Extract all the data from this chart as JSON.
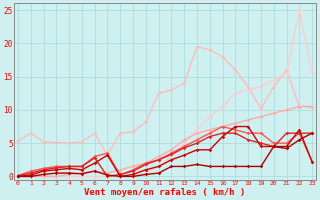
{
  "xlabel": "Vent moyen/en rafales ( km/h )",
  "bg_color": "#cff0f0",
  "grid_color": "#aadddd",
  "axis_color": "#888888",
  "x_ticks": [
    0,
    1,
    2,
    3,
    4,
    5,
    6,
    7,
    8,
    9,
    10,
    11,
    12,
    13,
    14,
    15,
    16,
    17,
    18,
    19,
    20,
    21,
    22,
    23
  ],
  "ylim": [
    -0.5,
    26
  ],
  "xlim": [
    -0.3,
    23.3
  ],
  "series": [
    {
      "x": [
        0,
        1,
        2,
        3,
        4,
        5,
        6,
        7,
        8,
        9,
        10,
        11,
        12,
        13,
        14,
        15,
        16,
        17,
        18,
        19,
        20,
        21,
        22,
        23
      ],
      "y": [
        5.3,
        6.5,
        5.2,
        5.1,
        5.0,
        5.2,
        6.5,
        3.2,
        6.5,
        6.7,
        8.2,
        12.5,
        13.0,
        14.0,
        19.5,
        19.0,
        18.0,
        16.0,
        13.5,
        10.2,
        13.5,
        16.0,
        10.5,
        10.5
      ],
      "color": "#ffbbbb",
      "lw": 1.0,
      "marker": "D",
      "ms": 1.8
    },
    {
      "x": [
        0,
        1,
        2,
        3,
        4,
        5,
        6,
        7,
        8,
        9,
        10,
        11,
        12,
        13,
        14,
        15,
        16,
        17,
        18,
        19,
        20,
        21,
        22,
        23
      ],
      "y": [
        0.0,
        0.0,
        0.0,
        0.0,
        0.0,
        0.0,
        0.0,
        0.0,
        0.0,
        0.0,
        0.5,
        1.5,
        3.0,
        5.0,
        7.0,
        9.0,
        10.5,
        12.5,
        13.0,
        13.5,
        14.5,
        15.5,
        25.0,
        15.5
      ],
      "color": "#ffcccc",
      "lw": 1.0,
      "marker": "D",
      "ms": 1.8
    },
    {
      "x": [
        0,
        1,
        2,
        3,
        4,
        5,
        6,
        7,
        8,
        9,
        10,
        11,
        12,
        13,
        14,
        15,
        16,
        17,
        18,
        19,
        20,
        21,
        22,
        23
      ],
      "y": [
        0.0,
        0.0,
        0.0,
        0.0,
        0.3,
        0.5,
        0.8,
        0.5,
        1.0,
        1.5,
        2.0,
        3.0,
        4.0,
        5.5,
        6.5,
        7.0,
        7.5,
        8.0,
        8.5,
        9.0,
        9.5,
        10.0,
        10.5,
        10.5
      ],
      "color": "#ffaaaa",
      "lw": 1.0,
      "marker": "D",
      "ms": 1.8
    },
    {
      "x": [
        0,
        1,
        2,
        3,
        4,
        5,
        6,
        7,
        8,
        9,
        10,
        11,
        12,
        13,
        14,
        15,
        16,
        17,
        18,
        19,
        20,
        21,
        22,
        23
      ],
      "y": [
        0.1,
        0.8,
        1.2,
        1.5,
        1.5,
        1.5,
        3.0,
        3.5,
        0.2,
        1.0,
        2.0,
        2.5,
        3.5,
        4.5,
        5.5,
        6.5,
        7.5,
        7.0,
        6.5,
        6.5,
        5.0,
        5.0,
        6.5,
        2.2
      ],
      "color": "#ff5555",
      "lw": 1.0,
      "marker": "D",
      "ms": 1.8
    },
    {
      "x": [
        0,
        1,
        2,
        3,
        4,
        5,
        6,
        7,
        8,
        9,
        10,
        11,
        12,
        13,
        14,
        15,
        16,
        17,
        18,
        19,
        20,
        21,
        22,
        23
      ],
      "y": [
        0.1,
        0.5,
        1.0,
        1.3,
        1.5,
        1.5,
        2.8,
        0.0,
        0.3,
        0.8,
        1.8,
        2.5,
        3.3,
        4.3,
        5.0,
        6.0,
        6.5,
        6.5,
        5.5,
        5.0,
        4.5,
        6.5,
        6.5,
        6.5
      ],
      "color": "#dd2222",
      "lw": 1.0,
      "marker": "D",
      "ms": 1.8
    },
    {
      "x": [
        0,
        1,
        2,
        3,
        4,
        5,
        6,
        7,
        8,
        9,
        10,
        11,
        12,
        13,
        14,
        15,
        16,
        17,
        18,
        19,
        20,
        21,
        22,
        23
      ],
      "y": [
        0.0,
        0.2,
        0.8,
        1.0,
        1.2,
        1.0,
        2.0,
        3.2,
        0.0,
        0.3,
        1.0,
        1.5,
        2.5,
        3.2,
        4.0,
        4.0,
        6.0,
        7.5,
        7.5,
        4.5,
        4.5,
        4.5,
        7.0,
        2.2
      ],
      "color": "#cc0000",
      "lw": 1.0,
      "marker": "D",
      "ms": 1.8
    },
    {
      "x": [
        0,
        1,
        2,
        3,
        4,
        5,
        6,
        7,
        8,
        9,
        10,
        11,
        12,
        13,
        14,
        15,
        16,
        17,
        18,
        19,
        20,
        21,
        22,
        23
      ],
      "y": [
        0.0,
        0.0,
        0.3,
        0.5,
        0.5,
        0.4,
        0.8,
        0.2,
        0.0,
        0.0,
        0.3,
        0.5,
        1.5,
        1.5,
        1.8,
        1.5,
        1.5,
        1.5,
        1.5,
        1.5,
        4.5,
        4.2,
        5.5,
        6.5
      ],
      "color": "#aa0000",
      "lw": 1.0,
      "marker": "D",
      "ms": 1.8
    }
  ]
}
